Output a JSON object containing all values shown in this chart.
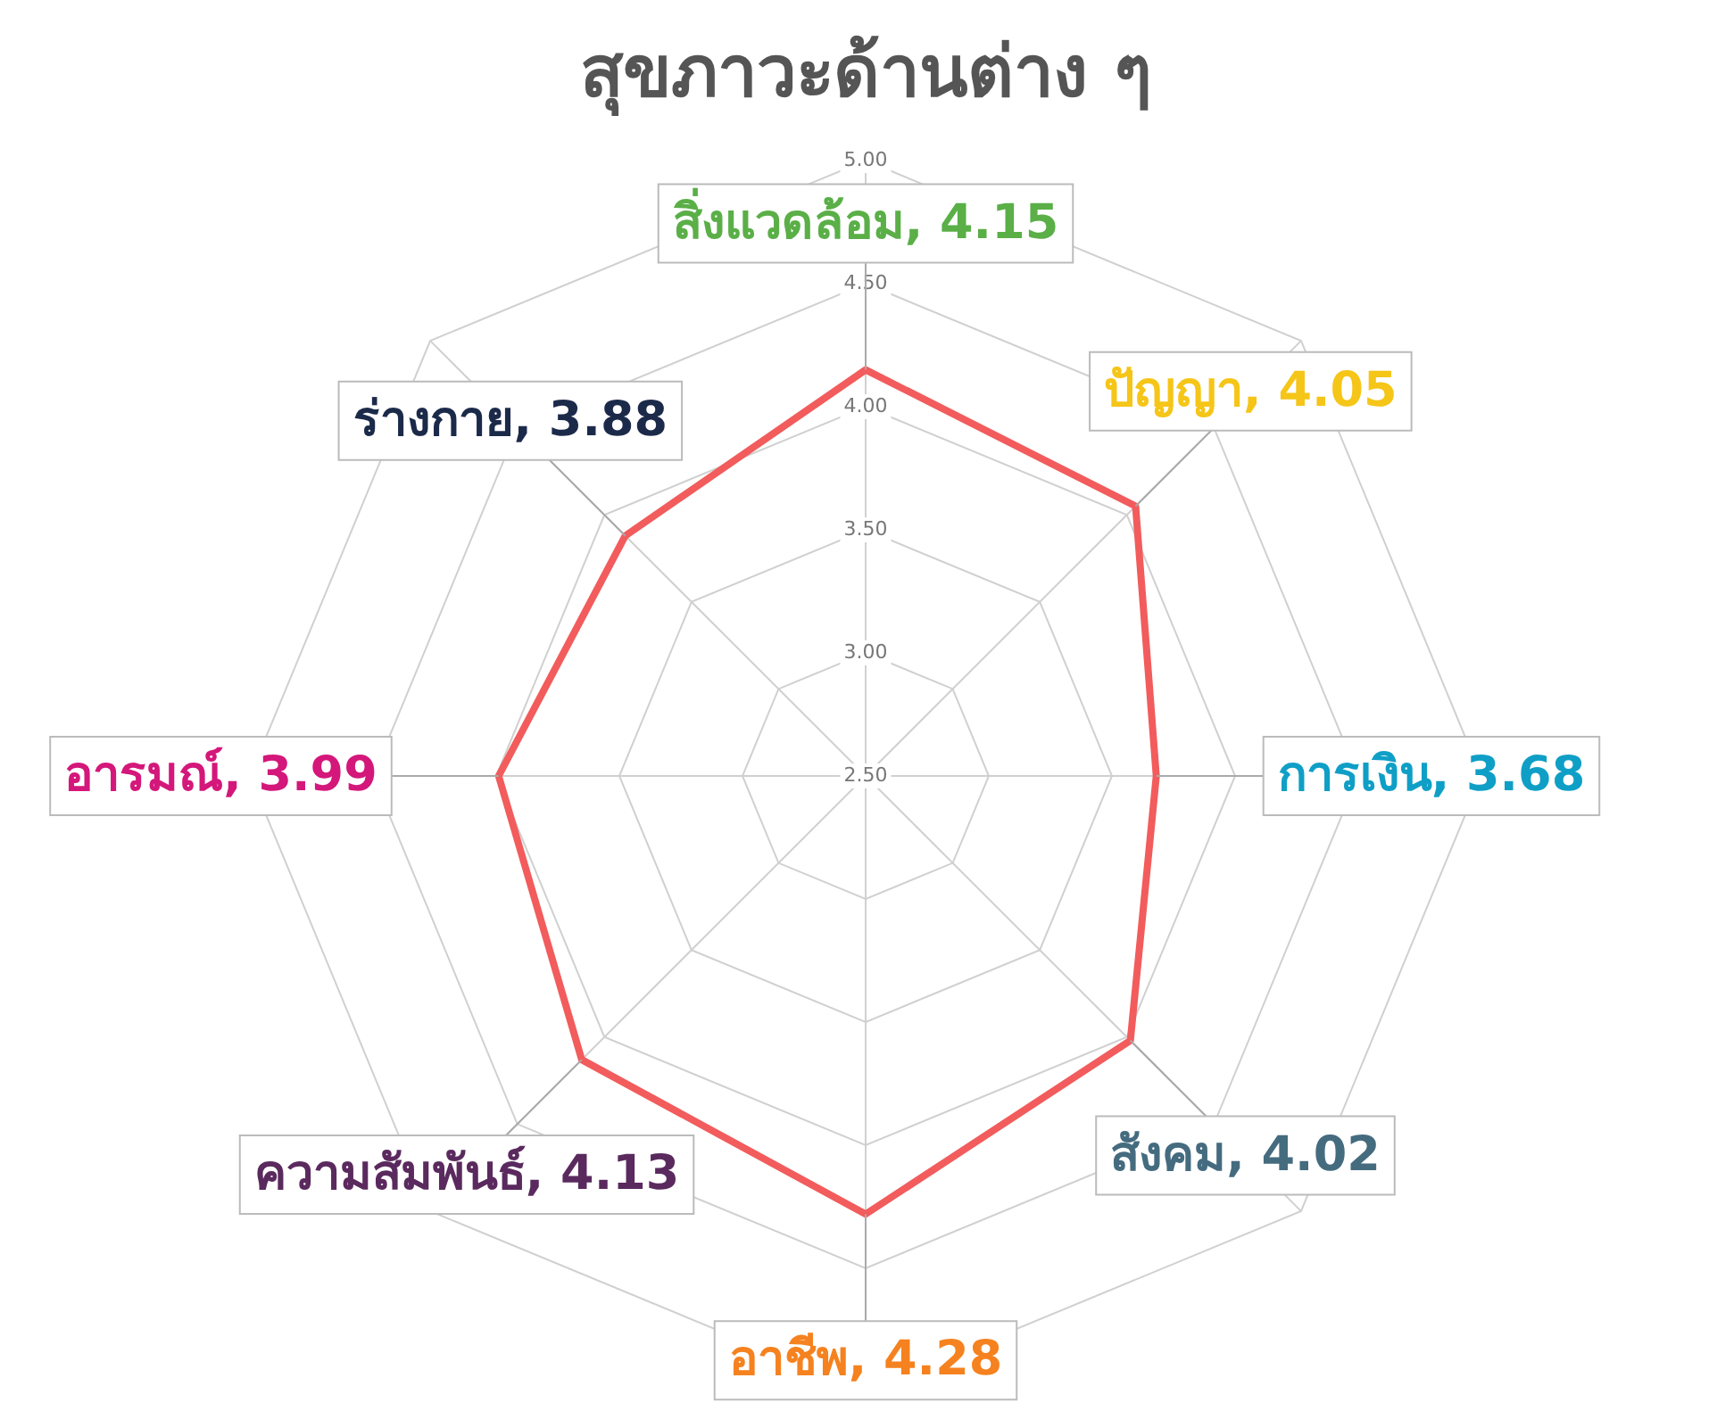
{
  "chart_data": {
    "type": "radar",
    "title": "สุขภาวะด้านต่าง ๆ",
    "categories": [
      "สิ่งแวดล้อม",
      "ปัญญา",
      "การเงิน",
      "สังคม",
      "อาชีพ",
      "ความสัมพันธ์",
      "อารมณ์",
      "ร่างกาย"
    ],
    "series": [
      {
        "color": "#f25c5c",
        "values": [
          4.15,
          4.05,
          3.68,
          4.02,
          4.28,
          4.13,
          3.99,
          3.88
        ]
      }
    ],
    "colors": [
      "#5aaf47",
      "#f5c518",
      "#0f9fc6",
      "#456b7f",
      "#f5821f",
      "#5a2a5e",
      "#d4177a",
      "#1c2a4a"
    ],
    "ylim": [
      2.5,
      5
    ],
    "yticks": [
      {
        "value": 2.5,
        "label": "2.50"
      },
      {
        "value": 3,
        "label": "3.00"
      },
      {
        "value": 3.5,
        "label": "3.50"
      },
      {
        "value": 4,
        "label": "4.00"
      },
      {
        "value": 4.5,
        "label": "4.50"
      },
      {
        "value": 5,
        "label": "5.00"
      }
    ],
    "value_labels": [
      ", 4.15",
      ", 4.05",
      ", 3.68",
      ", 4.02",
      ", 4.28",
      ", 4.13",
      ", 3.99",
      ", 3.88"
    ],
    "grid": true,
    "marker": "none",
    "legend": false
  }
}
